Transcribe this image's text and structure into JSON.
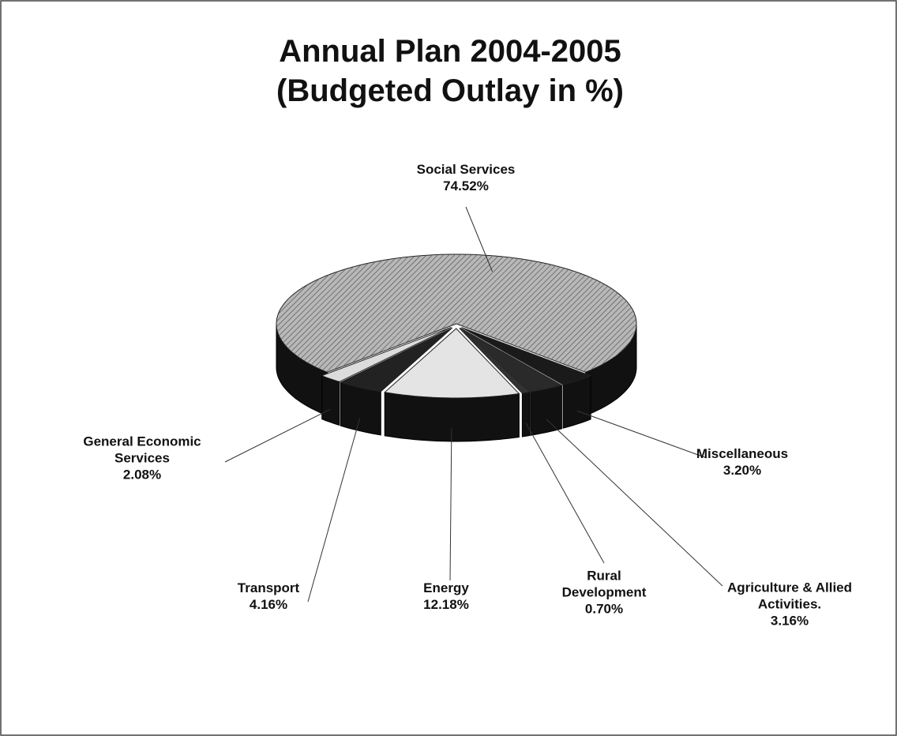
{
  "chart_data": {
    "type": "pie3d",
    "title": "Annual Plan 2004-2005",
    "subtitle": "(Budgeted Outlay in %)",
    "categories": [
      "Social Services",
      "Miscellaneous",
      "Agriculture & Allied Activities.",
      "Rural Development",
      "Energy",
      "Transport",
      "General Economic Services"
    ],
    "values": [
      74.52,
      3.2,
      3.16,
      0.7,
      12.18,
      4.16,
      2.08
    ],
    "value_labels": [
      "74.52%",
      "3.20%",
      "3.16%",
      "0.70%",
      "12.18%",
      "4.16%",
      "2.08%"
    ],
    "colors": [
      "#b8b8b8",
      "#1a1a1a",
      "#2a2a2a",
      "#333333",
      "#e4e4e4",
      "#222222",
      "#dcdcdc"
    ]
  }
}
